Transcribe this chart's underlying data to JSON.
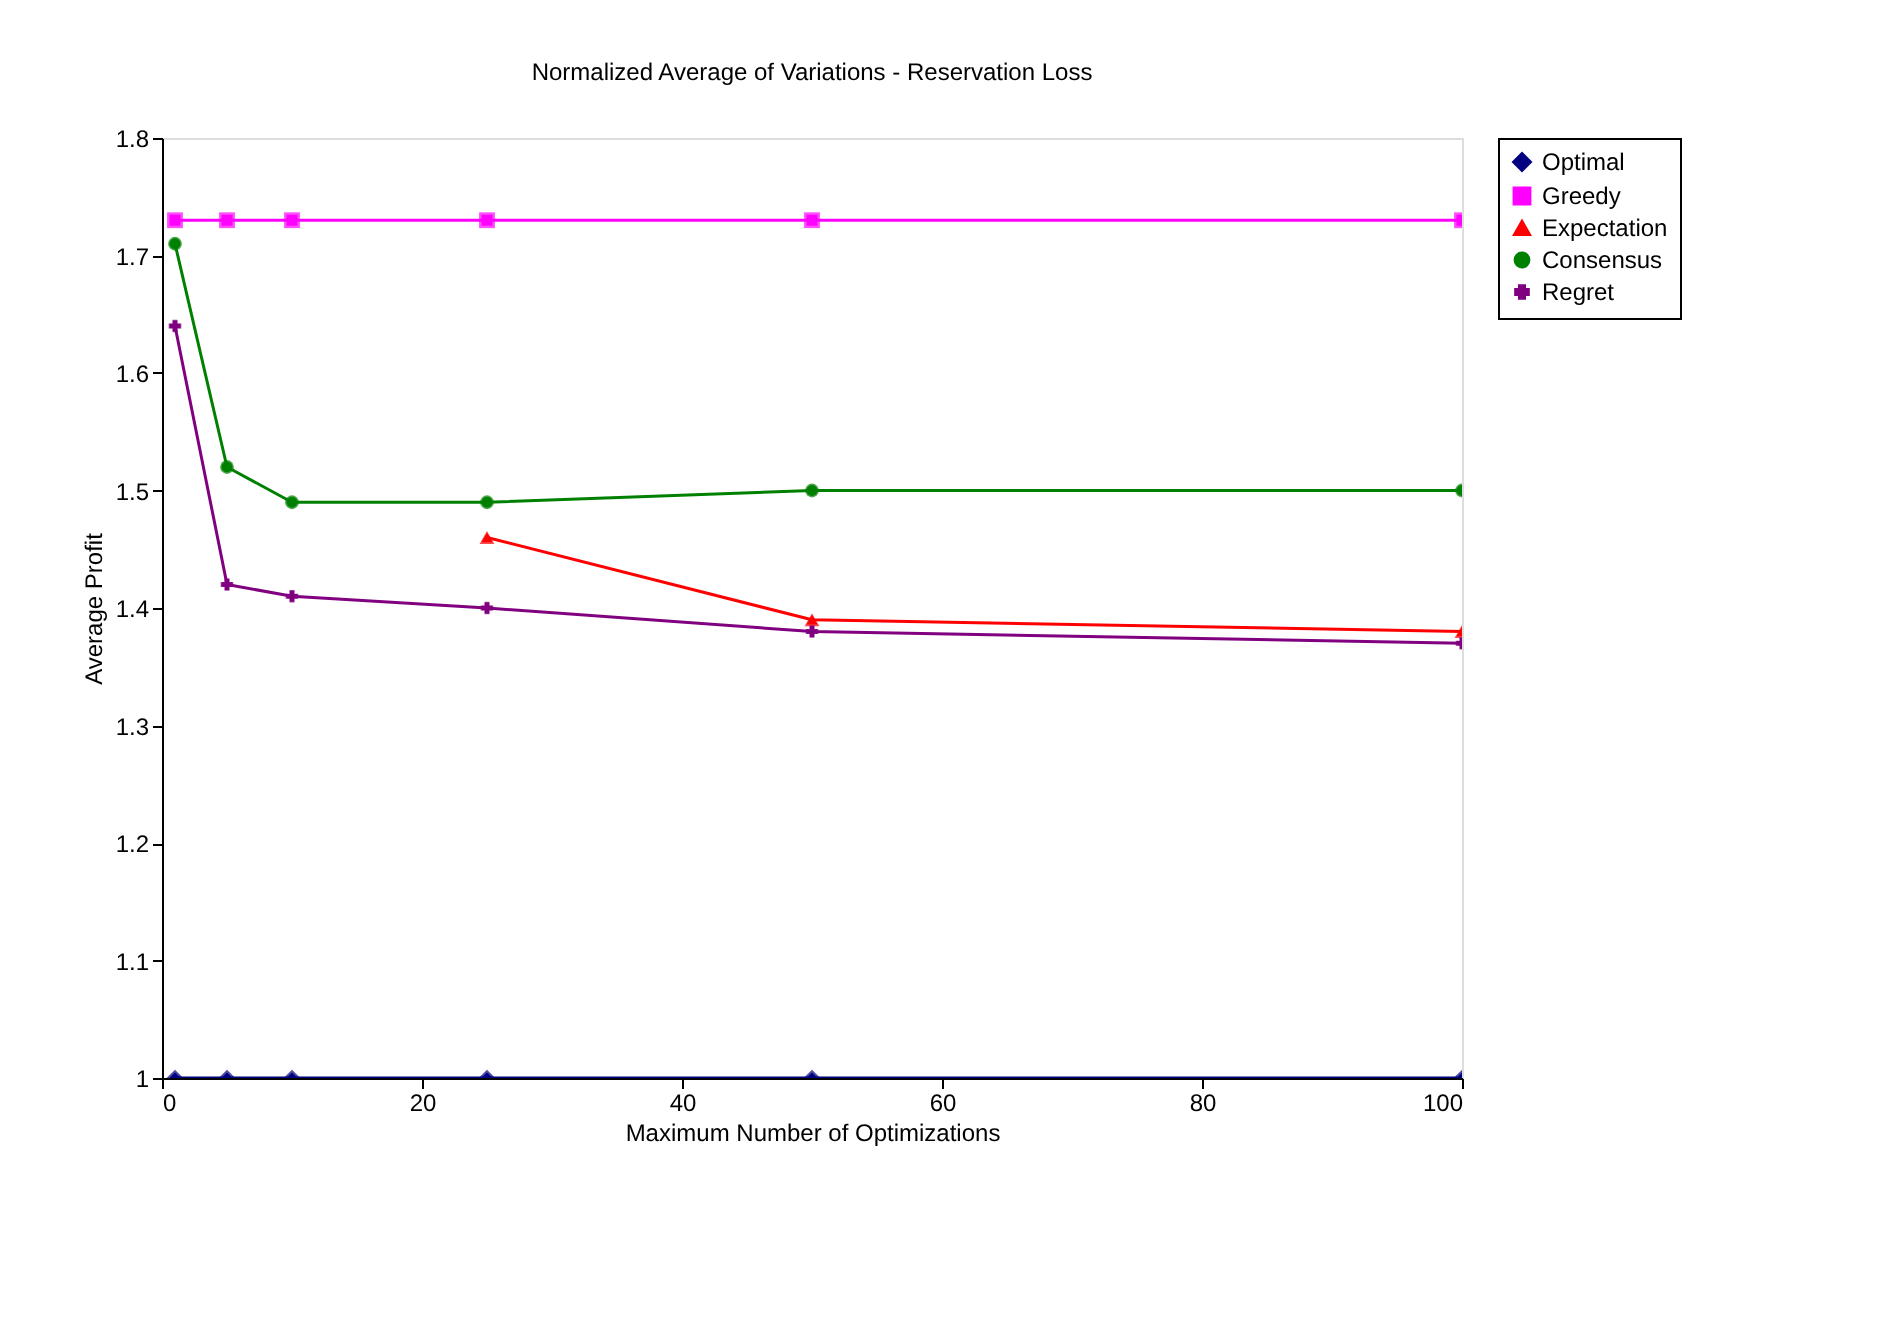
{
  "chart_data": {
    "type": "line",
    "title": "Normalized Average of Variations - Reservation Loss",
    "xlabel": "Maximum Number of Optimizations",
    "ylabel": "Average Profit",
    "x": [
      1,
      5,
      10,
      25,
      50,
      100
    ],
    "xlim": [
      0,
      100
    ],
    "xticks": [
      0,
      20,
      40,
      60,
      80,
      100
    ],
    "ylim": [
      1,
      1.8
    ],
    "yticks": [
      1,
      1.1,
      1.2,
      1.3,
      1.4,
      1.5,
      1.6,
      1.7,
      1.8
    ],
    "grid": false,
    "legend": "right",
    "series": [
      {
        "name": "Optimal",
        "color": "#000080",
        "marker": "diamond",
        "values": [
          1,
          1,
          1,
          1,
          1,
          1
        ]
      },
      {
        "name": "Greedy",
        "color": "#ff00ff",
        "marker": "square",
        "values": [
          1.73,
          1.73,
          1.73,
          1.73,
          1.73,
          1.73
        ]
      },
      {
        "name": "Expectation",
        "color": "#ff0000",
        "marker": "triangle",
        "values": [
          null,
          null,
          null,
          1.46,
          1.39,
          1.38
        ]
      },
      {
        "name": "Consensus",
        "color": "#008000",
        "marker": "circle",
        "values": [
          1.71,
          1.52,
          1.49,
          1.49,
          1.5,
          1.5
        ]
      },
      {
        "name": "Regret",
        "color": "#800080",
        "marker": "cross",
        "values": [
          1.64,
          1.42,
          1.41,
          1.4,
          1.38,
          1.37
        ]
      }
    ]
  }
}
